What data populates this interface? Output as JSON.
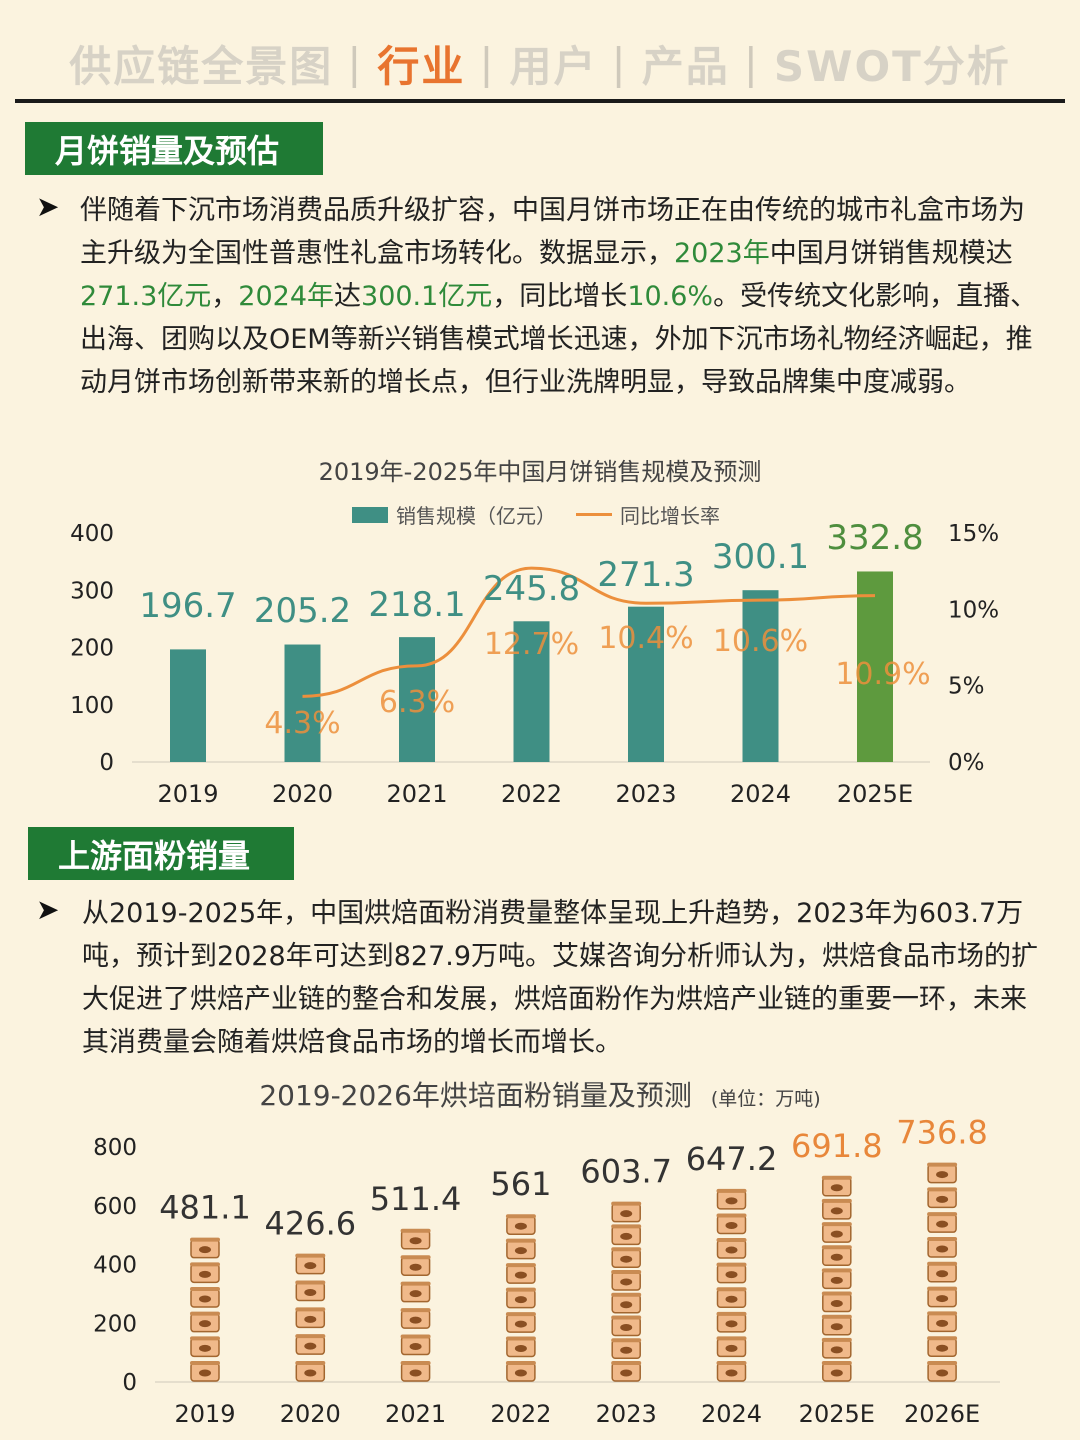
{
  "nav": {
    "items": [
      "供应链全景图",
      "行业",
      "用户",
      "产品",
      "SWOT分析"
    ],
    "active_index": 1,
    "separator": "|"
  },
  "section1": {
    "tag": "月饼销量及预估",
    "para_parts": [
      {
        "t": "伴随着下沉市场消费品质升级扩容，中国月饼市场正在由传统的城市礼盒市场为主升级为全国性普惠性礼盒市场转化。数据显示，",
        "hl": false
      },
      {
        "t": "2023年",
        "hl": true
      },
      {
        "t": "中国月饼销售规模达",
        "hl": false
      },
      {
        "t": "271.3亿元",
        "hl": true
      },
      {
        "t": "，",
        "hl": false
      },
      {
        "t": "2024年",
        "hl": true
      },
      {
        "t": "达",
        "hl": false
      },
      {
        "t": "300.1亿元",
        "hl": true
      },
      {
        "t": "，同比增长",
        "hl": false
      },
      {
        "t": "10.6%",
        "hl": true
      },
      {
        "t": "。受传统文化影响，直播、出海、团购以及OEM等新兴销售模式增长迅速，外加下沉市场礼物经济崛起，推动月饼市场创新带来新的增长点，但行业洗牌明显，导致品牌集中度减弱。",
        "hl": false
      }
    ]
  },
  "section2": {
    "tag": "上游面粉销量",
    "para": "从2019-2025年，中国烘焙面粉消费量整体呈现上升趋势，2023年为603.7万吨，预计到2028年可达到827.9万吨。艾媒咨询分析师认为，烘焙食品市场的扩大促进了烘焙产业链的整合和发展，烘焙面粉作为烘焙产业链的重要一环，未来其消费量会随着烘焙食品市场的增长而增长。"
  },
  "colors": {
    "accent_green": "#2f8a3a",
    "tag_green": "#1f7a34",
    "bar_teal": "#3f8f84",
    "bar_forecast": "#5e9a3e",
    "line_orange": "#ec8f3c",
    "nav_active": "#e8742f",
    "forecast_label": "#e8873a"
  },
  "chart_data": [
    {
      "type": "bar",
      "title": "2019年-2025年中国月饼销售规模及预测",
      "legend": [
        "销售规模（亿元）",
        "同比增长率"
      ],
      "legend_placement": "top-center",
      "categories": [
        "2019",
        "2020",
        "2021",
        "2022",
        "2023",
        "2024",
        "2025E"
      ],
      "series": [
        {
          "name": "销售规模（亿元）",
          "type": "bar",
          "values": [
            196.7,
            205.2,
            218.1,
            245.8,
            271.3,
            300.1,
            332.8
          ],
          "axis": "left"
        },
        {
          "name": "同比增长率",
          "type": "line",
          "values": [
            null,
            4.3,
            6.3,
            12.7,
            10.4,
            10.6,
            10.9
          ],
          "axis": "right"
        }
      ],
      "bar_labels": [
        "196.7",
        "205.2",
        "218.1",
        "245.8",
        "271.3",
        "300.1",
        "332.8"
      ],
      "rate_labels": [
        "",
        "4.3%",
        "6.3%",
        "12.7%",
        "10.4%",
        "10.6%",
        "10.9%"
      ],
      "ylim_left": [
        0,
        400
      ],
      "yticks_left": [
        "0",
        "100",
        "200",
        "300",
        "400"
      ],
      "yticks_left_values": [
        0,
        100,
        200,
        300,
        400
      ],
      "ylim_right": [
        0,
        15
      ],
      "yticks_right": [
        "0%",
        "5%",
        "10%",
        "15%"
      ],
      "yticks_right_values": [
        0,
        5,
        10,
        15
      ],
      "forecast_index": 6,
      "grid": false
    },
    {
      "type": "bar",
      "title": "2019-2026年烘培面粉销量及预测",
      "unit_note": "(单位：万吨)",
      "categories": [
        "2019",
        "2020",
        "2021",
        "2022",
        "2023",
        "2024",
        "2025E",
        "2026E"
      ],
      "values": [
        481.1,
        426.6,
        511.4,
        561,
        603.7,
        647.2,
        691.8,
        736.8
      ],
      "value_labels": [
        "481.1",
        "426.6",
        "511.4",
        "561",
        "603.7",
        "647.2",
        "691.8",
        "736.8"
      ],
      "ylim": [
        0,
        800
      ],
      "yticks": [
        "0",
        "200",
        "400",
        "600",
        "800"
      ],
      "yticks_values": [
        0,
        200,
        400,
        600,
        800
      ],
      "forecast_indices": [
        6,
        7
      ],
      "style": "pictograph",
      "grid": false
    }
  ]
}
